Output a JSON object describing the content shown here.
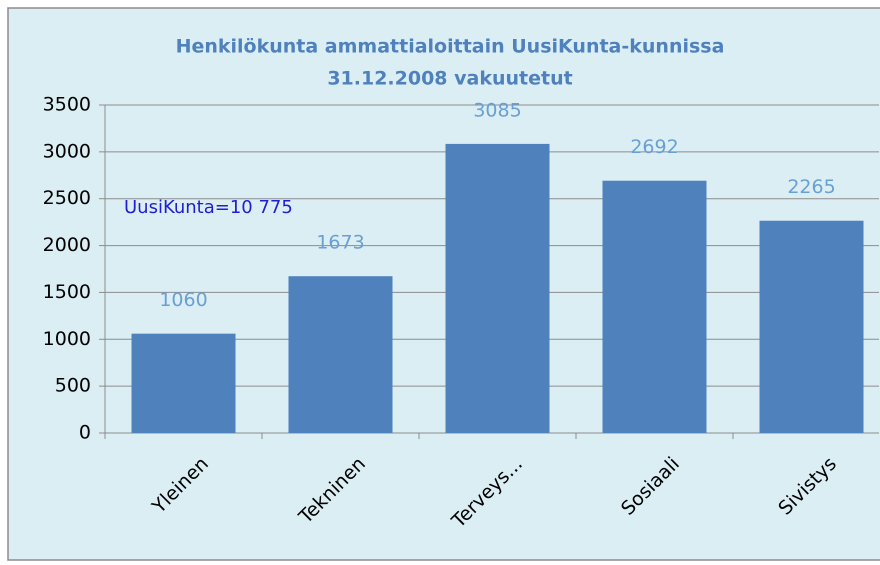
{
  "chart_data": {
    "type": "bar",
    "title": "Henkilökunta ammattialoittain UusiKunta-kunnissa",
    "subtitle": "31.12.2008 vakuutetut",
    "annotation": "UusiKunta=10 775",
    "categories": [
      "Yleinen",
      "Tekninen",
      "Terveys...",
      "Sosiaali",
      "Sivistys"
    ],
    "values": [
      1060,
      1673,
      3085,
      2692,
      2265
    ],
    "color": "#4f81bd",
    "ylim": [
      0,
      3500
    ],
    "yticks": [
      0,
      500,
      1000,
      1500,
      2000,
      2500,
      3000,
      3500
    ],
    "grid": true
  }
}
